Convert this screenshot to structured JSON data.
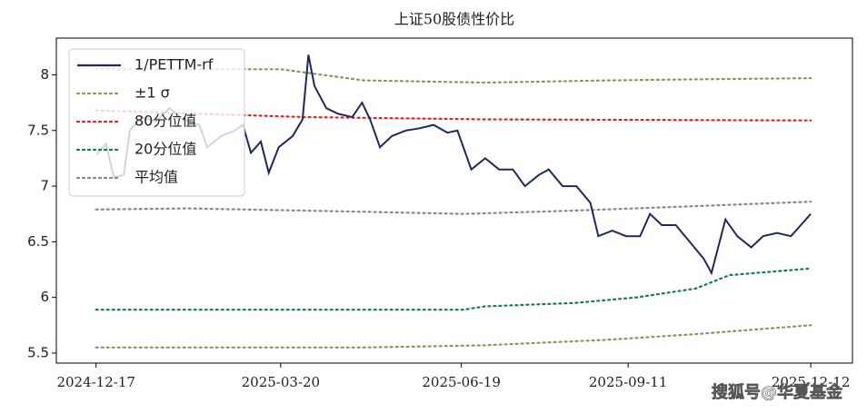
{
  "chart_data": {
    "type": "line",
    "title": "上证50股债性价比",
    "watermark": "搜狐号@华夏基金",
    "xlim": [
      "2024-11-27",
      "2026-01-02"
    ],
    "xticks": [
      "2024-12-17",
      "2025-03-20",
      "2025-06-19",
      "2025-09-11",
      "2025-12-12"
    ],
    "ylim": [
      5.41,
      8.33
    ],
    "yticks": [
      5.5,
      6.0,
      6.5,
      7.0,
      7.5,
      8.0
    ],
    "legend": "upper left",
    "series": [
      {
        "name": "1/PETTM-rf",
        "color": "#1f2a5c",
        "style": "solid",
        "x": [
          "2024-12-17",
          "2024-12-22",
          "2024-12-26",
          "2024-12-31",
          "2025-01-03",
          "2025-01-09",
          "2025-01-16",
          "2025-01-23",
          "2025-01-30",
          "2025-02-07",
          "2025-02-11",
          "2025-02-18",
          "2025-02-25",
          "2025-03-01",
          "2025-03-05",
          "2025-03-10",
          "2025-03-14",
          "2025-03-19",
          "2025-03-26",
          "2025-03-31",
          "2025-04-03",
          "2025-04-06",
          "2025-04-12",
          "2025-04-18",
          "2025-04-25",
          "2025-04-30",
          "2025-05-04",
          "2025-05-09",
          "2025-05-15",
          "2025-05-22",
          "2025-05-29",
          "2025-06-05",
          "2025-06-12",
          "2025-06-17",
          "2025-06-24",
          "2025-07-01",
          "2025-07-08",
          "2025-07-15",
          "2025-07-21",
          "2025-07-28",
          "2025-08-02",
          "2025-08-09",
          "2025-08-16",
          "2025-08-23",
          "2025-08-27",
          "2025-09-03",
          "2025-09-10",
          "2025-09-17",
          "2025-09-22",
          "2025-09-28",
          "2025-10-05",
          "2025-10-12",
          "2025-10-19",
          "2025-10-23",
          "2025-10-30",
          "2025-11-05",
          "2025-11-12",
          "2025-11-18",
          "2025-11-25",
          "2025-12-02",
          "2025-12-07",
          "2025-12-12"
        ],
        "values": [
          7.28,
          7.38,
          7.08,
          7.1,
          7.5,
          7.62,
          7.58,
          7.7,
          7.6,
          7.55,
          7.35,
          7.45,
          7.5,
          7.55,
          7.3,
          7.4,
          7.12,
          7.35,
          7.45,
          7.6,
          8.18,
          7.9,
          7.7,
          7.65,
          7.62,
          7.75,
          7.6,
          7.35,
          7.45,
          7.5,
          7.52,
          7.55,
          7.48,
          7.5,
          7.15,
          7.25,
          7.15,
          7.15,
          7.0,
          7.1,
          7.15,
          7.0,
          7.0,
          6.85,
          6.55,
          6.6,
          6.55,
          6.55,
          6.75,
          6.65,
          6.65,
          6.5,
          6.35,
          6.22,
          6.7,
          6.55,
          6.45,
          6.55,
          6.58,
          6.55,
          6.65,
          6.75
        ]
      },
      {
        "name": "±1 σ",
        "color": "#9a8f5a",
        "style": "dotted",
        "x": [
          "2024-12-17",
          "2025-03-20",
          "2025-05-01",
          "2025-07-01",
          "2025-09-01",
          "2025-10-15",
          "2025-12-12"
        ],
        "values": [
          8.05,
          8.05,
          7.95,
          7.93,
          7.95,
          7.96,
          7.97
        ],
        "values_lower": [
          5.55,
          5.55,
          5.55,
          5.57,
          5.62,
          5.67,
          5.75
        ]
      },
      {
        "name": "80分位值",
        "color": "#d62728",
        "style": "dotted",
        "x": [
          "2024-12-17",
          "2025-04-01",
          "2025-07-01",
          "2025-12-12"
        ],
        "values": [
          7.68,
          7.62,
          7.6,
          7.59
        ]
      },
      {
        "name": "20分位值",
        "color": "#1a7a4a",
        "style": "dotted",
        "x": [
          "2024-12-17",
          "2025-06-20",
          "2025-07-01",
          "2025-08-15",
          "2025-09-15",
          "2025-10-15",
          "2025-11-01",
          "2025-12-12"
        ],
        "values": [
          5.89,
          5.89,
          5.92,
          5.95,
          6.0,
          6.08,
          6.2,
          6.26
        ]
      },
      {
        "name": "平均值",
        "color": "#888888",
        "style": "dotted",
        "x": [
          "2024-12-17",
          "2025-02-01",
          "2025-05-01",
          "2025-06-20",
          "2025-08-15",
          "2025-10-15",
          "2025-12-12"
        ],
        "values": [
          6.79,
          6.8,
          6.77,
          6.75,
          6.78,
          6.82,
          6.86
        ]
      }
    ]
  }
}
